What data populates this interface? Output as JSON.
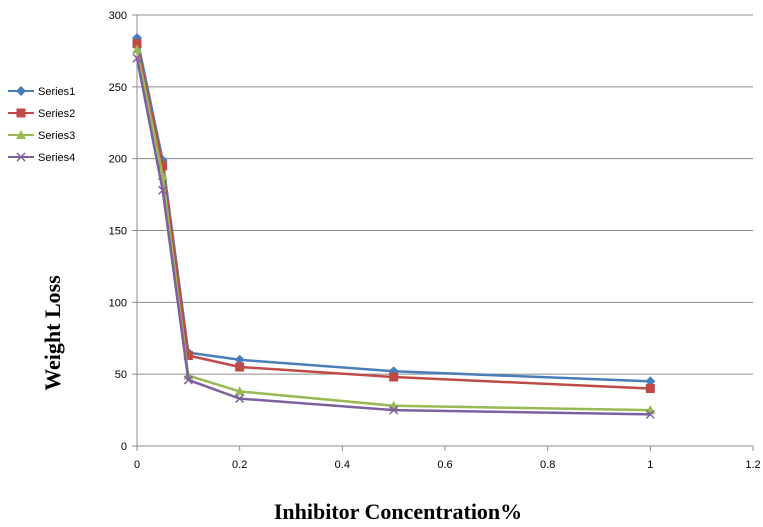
{
  "chart_data": {
    "type": "line",
    "title": "",
    "xlabel": "Inhibitor Concentration%",
    "ylabel": "Weight Loss",
    "xlim": [
      0,
      1.2
    ],
    "ylim": [
      0,
      300
    ],
    "xticks": [
      0,
      0.2,
      0.4,
      0.6,
      0.8,
      1,
      1.2
    ],
    "yticks": [
      0,
      50,
      100,
      150,
      200,
      250,
      300
    ],
    "xtick_labels": [
      "0",
      "0.2",
      "0.4",
      "0.6",
      "0.8",
      "1",
      "1.2"
    ],
    "ytick_labels": [
      "0",
      "50",
      "100",
      "150",
      "200",
      "250",
      "300"
    ],
    "grid": "horizontal",
    "legend_position": "left",
    "x": [
      0,
      0.05,
      0.1,
      0.2,
      0.5,
      1
    ],
    "series": [
      {
        "name": "Series1",
        "color": "#4a7ebb",
        "marker": "diamond",
        "values": [
          284,
          199,
          65,
          60,
          52,
          45
        ]
      },
      {
        "name": "Series2",
        "color": "#be4b48",
        "marker": "square",
        "values": [
          280,
          195,
          63,
          55,
          48,
          40
        ]
      },
      {
        "name": "Series3",
        "color": "#98b954",
        "marker": "triangle",
        "values": [
          276,
          188,
          49,
          38,
          28,
          25
        ]
      },
      {
        "name": "Series4",
        "color": "#7d60a0",
        "marker": "x",
        "values": [
          270,
          178,
          46,
          33,
          25,
          22
        ]
      }
    ]
  }
}
